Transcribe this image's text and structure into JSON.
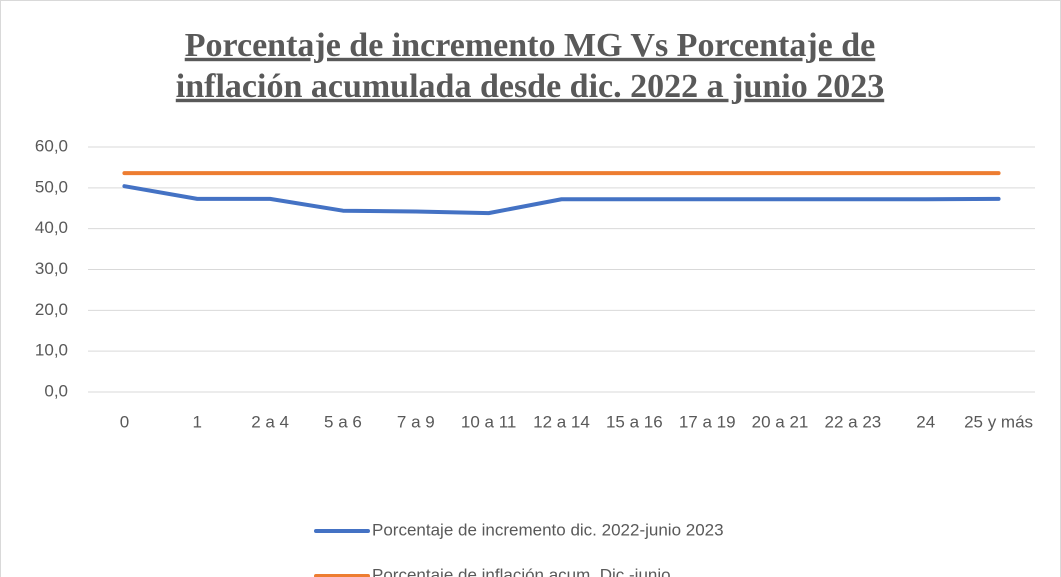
{
  "chart_data": {
    "type": "line",
    "title": [
      "Porcentaje de incremento MG Vs Porcentaje de",
      "inflación acumulada desde dic. 2022 a junio 2023"
    ],
    "categories": [
      "0",
      "1",
      "2 a 4",
      "5 a 6",
      "7 a 9",
      "10 a 11",
      "12 a 14",
      "15 a 16",
      "17 a 19",
      "20 a 21",
      "22 a 23",
      "24",
      "25 y más"
    ],
    "series": [
      {
        "name": "Porcentaje de incremento dic. 2022-junio 2023",
        "color": "#4472c4",
        "values": [
          50.4,
          47.3,
          47.3,
          44.4,
          44.2,
          43.8,
          47.2,
          47.2,
          47.2,
          47.2,
          47.2,
          47.2,
          47.3
        ]
      },
      {
        "name": "Porcentaje de inflación acum. Dic.-junio",
        "color": "#ed7d31",
        "values": [
          53.6,
          53.6,
          53.6,
          53.6,
          53.6,
          53.6,
          53.6,
          53.6,
          53.6,
          53.6,
          53.6,
          53.6,
          53.6
        ]
      }
    ],
    "ylim": [
      0,
      60
    ],
    "yticks": [
      {
        "value": 0,
        "label": "0,0"
      },
      {
        "value": 10,
        "label": "10,0"
      },
      {
        "value": 20,
        "label": "20,0"
      },
      {
        "value": 30,
        "label": "30,0"
      },
      {
        "value": 40,
        "label": "40,0"
      },
      {
        "value": 50,
        "label": "50,0"
      },
      {
        "value": 60,
        "label": "60,0"
      }
    ],
    "grid": true,
    "legend": "bottom"
  }
}
